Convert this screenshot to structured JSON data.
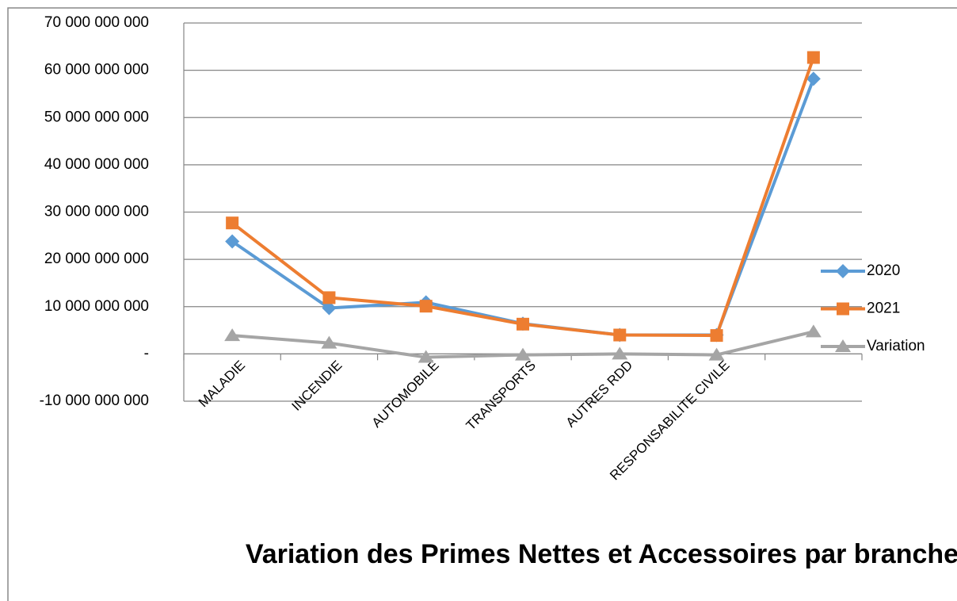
{
  "chart_data": {
    "type": "line",
    "title": "Variation des Primes Nettes et Accessoires par branche",
    "categories": [
      "MALADIE",
      "INCENDIE",
      "AUTOMOBILE",
      "TRANSPORTS",
      "AUTRES RDD",
      "RESPONSABILITE CIVILE",
      null
    ],
    "series": [
      {
        "name": "2020",
        "color": "#5b9bd5",
        "marker": "diamond",
        "values": [
          23800000000,
          9700000000,
          10900000000,
          6400000000,
          4000000000,
          4000000000,
          58200000000
        ]
      },
      {
        "name": "2021",
        "color": "#ed7d31",
        "marker": "square",
        "values": [
          27700000000,
          11900000000,
          10100000000,
          6300000000,
          4000000000,
          3900000000,
          62700000000
        ]
      },
      {
        "name": "Variation",
        "color": "#a5a5a5",
        "marker": "triangle",
        "values": [
          3900000000,
          2300000000,
          -700000000,
          -200000000,
          0,
          -200000000,
          4700000000
        ]
      }
    ],
    "ylim": [
      -10000000000,
      70000000000
    ],
    "yticks": [
      {
        "value": -10000000000,
        "label": "-10 000 000 000"
      },
      {
        "value": 0,
        "label": "-"
      },
      {
        "value": 10000000000,
        "label": "10 000 000 000"
      },
      {
        "value": 20000000000,
        "label": "20 000 000 000"
      },
      {
        "value": 30000000000,
        "label": "30 000 000 000"
      },
      {
        "value": 40000000000,
        "label": "40 000 000 000"
      },
      {
        "value": 50000000000,
        "label": "50 000 000 000"
      },
      {
        "value": 60000000000,
        "label": "60 000 000 000"
      },
      {
        "value": 70000000000,
        "label": "70 000 000 000"
      }
    ],
    "grid": true,
    "legend": "right"
  }
}
